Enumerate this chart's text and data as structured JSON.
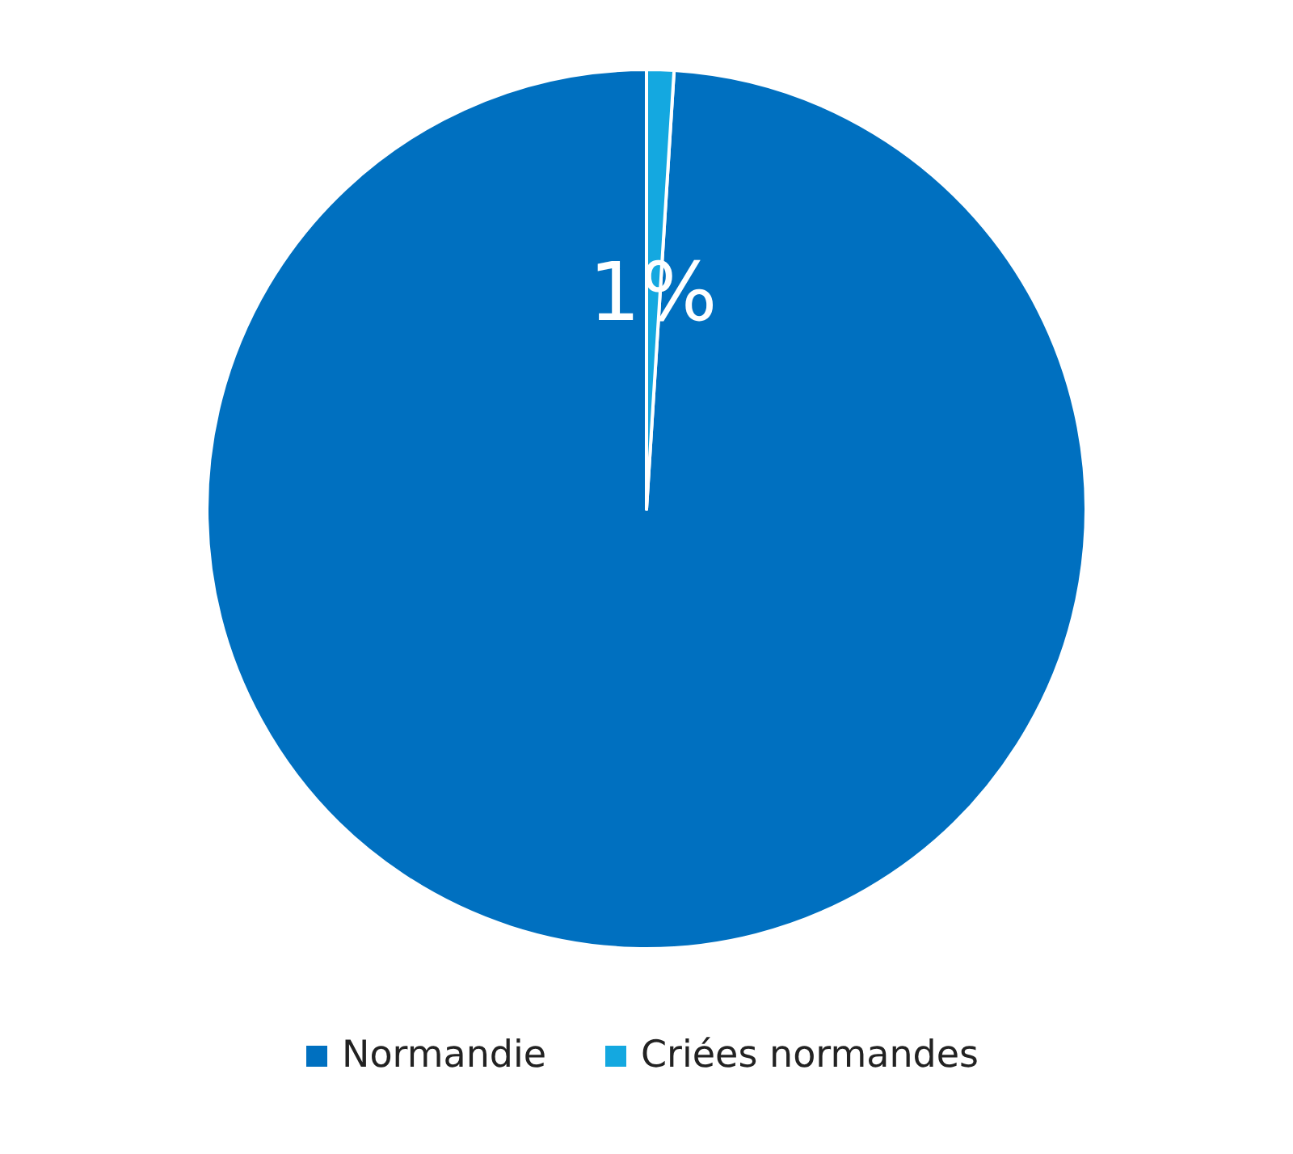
{
  "chart_data": {
    "type": "pie",
    "categories": [
      "Normandie",
      "Criées normandes"
    ],
    "values": [
      99,
      1
    ],
    "colors": [
      "#0070c0",
      "#14a8e0"
    ],
    "value_labels": [
      null,
      "1%"
    ],
    "legend": "bottom"
  }
}
